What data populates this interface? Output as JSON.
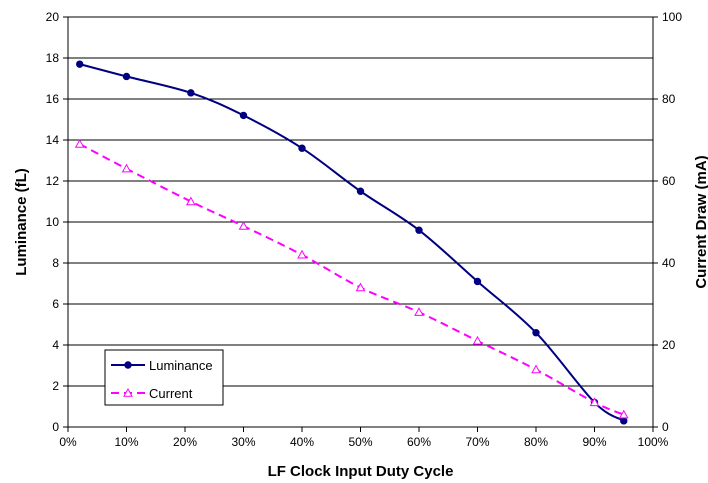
{
  "chart_data": {
    "type": "line",
    "title": "",
    "xlabel": "LF Clock Input Duty Cycle",
    "ylabel": "Luminance (fL)",
    "y2label": "Current Draw (mA)",
    "xlim": [
      0,
      100
    ],
    "ylim": [
      0,
      20
    ],
    "y2lim": [
      0,
      100
    ],
    "x_ticks": [
      "0%",
      "10%",
      "20%",
      "30%",
      "40%",
      "50%",
      "60%",
      "70%",
      "80%",
      "90%",
      "100%"
    ],
    "y_ticks": [
      "0",
      "2",
      "4",
      "6",
      "8",
      "10",
      "12",
      "14",
      "16",
      "18",
      "20"
    ],
    "y2_ticks": [
      "0",
      "20",
      "40",
      "60",
      "80",
      "100"
    ],
    "grid": true,
    "legend_position": "bottom-left",
    "series": [
      {
        "name": "Luminance",
        "axis": "left",
        "color": "#000080",
        "marker": "circle",
        "line_style": "solid",
        "x": [
          2,
          10,
          21,
          30,
          40,
          50,
          60,
          70,
          80,
          90,
          95
        ],
        "values": [
          17.7,
          17.1,
          16.3,
          15.2,
          13.6,
          11.5,
          9.6,
          7.1,
          4.6,
          1.2,
          0.3
        ]
      },
      {
        "name": "Current",
        "axis": "right",
        "color": "#FF00FF",
        "marker": "triangle",
        "line_style": "dashed",
        "x": [
          2,
          10,
          21,
          30,
          40,
          50,
          60,
          70,
          80,
          90,
          95
        ],
        "values": [
          69,
          63,
          55,
          49,
          42,
          34,
          28,
          21,
          14,
          6,
          3
        ]
      }
    ]
  }
}
